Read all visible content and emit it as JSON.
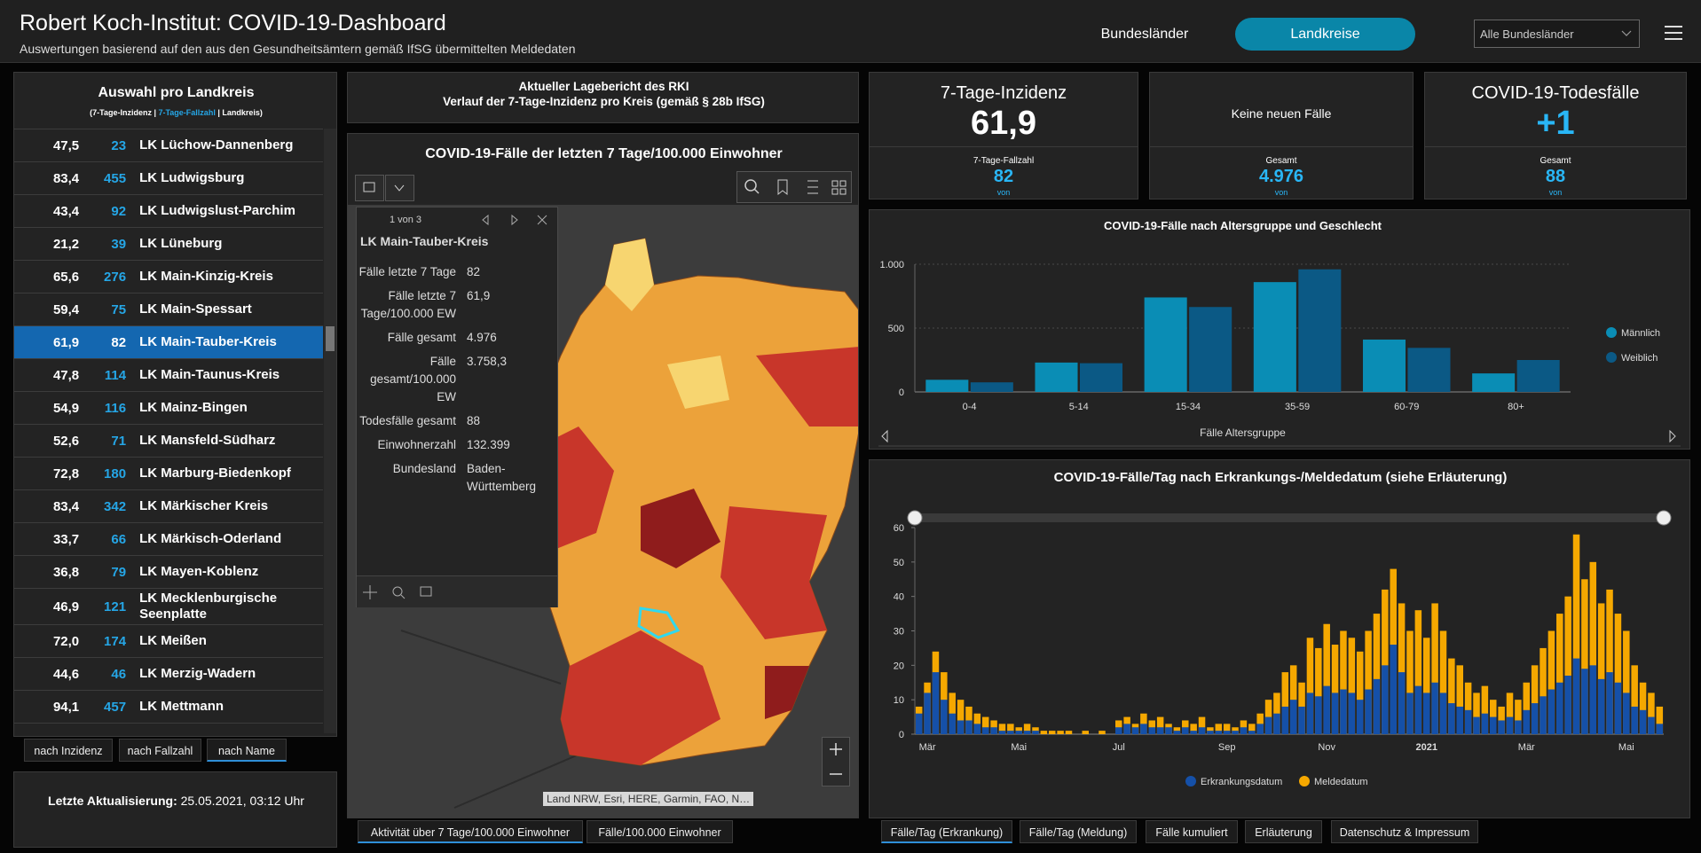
{
  "header": {
    "title": "Robert Koch-Institut: COVID-19-Dashboard",
    "subtitle": "Auswertungen basierend auf den aus den Gesundheitsämtern gemäß IfSG übermittelten Meldedaten",
    "tabs": [
      "Bundesländer",
      "Landkreise"
    ],
    "active_tab": 1,
    "dropdown": "Alle Bundesländer"
  },
  "district_list": {
    "title": "Auswahl pro Landkreis",
    "legend": [
      "(7-Tage-Inzidenz | ",
      "7-Tage-Fallzahl",
      " | Landkreis)"
    ],
    "selected": 6,
    "rows": [
      [
        "47,5",
        "23",
        "LK Lüchow-Dannenberg"
      ],
      [
        "83,4",
        "455",
        "LK Ludwigsburg"
      ],
      [
        "43,4",
        "92",
        "LK Ludwigslust-Parchim"
      ],
      [
        "21,2",
        "39",
        "LK Lüneburg"
      ],
      [
        "65,6",
        "276",
        "LK Main-Kinzig-Kreis"
      ],
      [
        "59,4",
        "75",
        "LK Main-Spessart"
      ],
      [
        "61,9",
        "82",
        "LK Main-Tauber-Kreis"
      ],
      [
        "47,8",
        "114",
        "LK Main-Taunus-Kreis"
      ],
      [
        "54,9",
        "116",
        "LK Mainz-Bingen"
      ],
      [
        "52,6",
        "71",
        "LK Mansfeld-Südharz"
      ],
      [
        "72,8",
        "180",
        "LK Marburg-Biedenkopf"
      ],
      [
        "83,4",
        "342",
        "LK Märkischer Kreis"
      ],
      [
        "33,7",
        "66",
        "LK Märkisch-Oderland"
      ],
      [
        "36,8",
        "79",
        "LK Mayen-Koblenz"
      ],
      [
        "46,9",
        "121",
        "LK Mecklenburgische Seenplatte"
      ],
      [
        "72,0",
        "174",
        "LK Meißen"
      ],
      [
        "44,6",
        "46",
        "LK Merzig-Wadern"
      ],
      [
        "94,1",
        "457",
        "LK Mettmann"
      ]
    ],
    "sort_buttons": [
      "nach Inzidenz",
      "nach Fallzahl",
      "nach Name"
    ],
    "active_sort": 2
  },
  "last_update": {
    "label": "Letzte Aktualisierung:",
    "value": "25.05.2021, 03:12 Uhr"
  },
  "report": {
    "line1": "Aktueller Lagebericht des RKI",
    "line2": "Verlauf der 7-Tage-Inzidenz pro Kreis (gemäß § 28b IfSG)"
  },
  "map": {
    "title": "COVID-19-Fälle der letzten 7 Tage/100.000 Einwohner",
    "attribution": "Land NRW, Esri, HERE, Garmin, FAO, N…",
    "popup": {
      "pager": "1 von 3",
      "title": "LK Main-Tauber-Kreis",
      "fields": [
        [
          "Fälle letzte 7 Tage",
          "82"
        ],
        [
          "Fälle letzte 7 Tage/100.000 EW",
          "61,9"
        ],
        [
          "Fälle gesamt",
          "4.976"
        ],
        [
          "Fälle gesamt/100.000 EW",
          "3.758,3"
        ],
        [
          "Todesfälle gesamt",
          "88"
        ],
        [
          "Einwohnerzahl",
          "132.399"
        ],
        [
          "Bundesland",
          "Baden-Württemberg"
        ]
      ]
    },
    "tabs": [
      "Aktivität über 7 Tage/100.000 Einwohner",
      "Fälle/100.000 Einwohner"
    ],
    "active_tab": 0
  },
  "kpis": [
    {
      "title": "7-Tage-Inzidenz",
      "value": "61,9",
      "sub_label": "7-Tage-Fallzahl",
      "sub_value": "82",
      "note": "von"
    },
    {
      "title": "Keine neuen Fälle",
      "sub_label": "Gesamt",
      "sub_value": "4.976",
      "note": "von"
    },
    {
      "title": "COVID-19-Todesfälle",
      "value": "+1",
      "sub_label": "Gesamt",
      "sub_value": "88",
      "note": "von"
    }
  ],
  "chart_data": [
    {
      "type": "bar",
      "barmode": "group",
      "title": "COVID-19-Fälle nach Altersgruppe und Geschlecht",
      "x_label": "Fälle Altersgruppe",
      "categories": [
        "0-4",
        "5-14",
        "15-34",
        "35-59",
        "60-79",
        "80+"
      ],
      "series": [
        {
          "name": "Männlich",
          "color": "#0a8db5",
          "values": [
            95,
            230,
            740,
            860,
            410,
            145
          ]
        },
        {
          "name": "Weiblich",
          "color": "#0b5985",
          "values": [
            75,
            225,
            665,
            960,
            345,
            250
          ]
        }
      ],
      "ylim": [
        0,
        1000
      ],
      "yticks": [
        0,
        500,
        {
          "value": 1000,
          "label": "1.000"
        }
      ],
      "grid": true
    },
    {
      "type": "bar",
      "barmode": "overlay",
      "title": "COVID-19-Fälle/Tag nach Erkrankungs-/Meldedatum (siehe Erläuterung)",
      "categories": [
        null,
        "Mär",
        null,
        null,
        null,
        null,
        null,
        null,
        null,
        null,
        null,
        null,
        "Mai",
        null,
        null,
        null,
        null,
        null,
        null,
        null,
        null,
        null,
        null,
        null,
        "Jul",
        null,
        null,
        null,
        null,
        null,
        null,
        null,
        null,
        null,
        null,
        null,
        null,
        "Sep",
        null,
        null,
        null,
        null,
        null,
        null,
        null,
        null,
        null,
        null,
        null,
        "Nov",
        null,
        null,
        null,
        null,
        null,
        null,
        null,
        null,
        null,
        null,
        null,
        "2021",
        null,
        null,
        null,
        null,
        null,
        null,
        null,
        null,
        null,
        null,
        null,
        "Mär",
        null,
        null,
        null,
        null,
        null,
        null,
        null,
        null,
        null,
        null,
        null,
        "Mai",
        null,
        null,
        null,
        null
      ],
      "series": [
        {
          "name": "Erkrankungsdatum",
          "color": "#1550a8",
          "values": [
            6,
            12,
            18,
            10,
            6,
            4,
            4,
            3,
            2,
            2,
            1,
            1,
            1,
            1,
            1,
            0,
            0,
            0,
            0,
            0,
            0,
            0,
            0,
            0,
            2,
            3,
            2,
            3,
            2,
            2,
            2,
            1,
            2,
            1,
            2,
            1,
            1,
            1,
            1,
            2,
            1,
            3,
            5,
            6,
            8,
            10,
            8,
            12,
            11,
            14,
            12,
            13,
            12,
            10,
            13,
            16,
            20,
            26,
            18,
            12,
            14,
            12,
            15,
            12,
            9,
            8,
            7,
            5,
            6,
            5,
            4,
            5,
            4,
            7,
            9,
            11,
            13,
            15,
            17,
            22,
            19,
            20,
            16,
            18,
            15,
            12,
            8,
            7,
            5,
            3
          ]
        },
        {
          "name": "Meldedatum",
          "color": "#f5a800",
          "values": [
            8,
            15,
            24,
            18,
            12,
            10,
            8,
            6,
            5,
            4,
            3,
            3,
            2,
            3,
            2,
            1,
            1,
            1,
            1,
            0,
            1,
            0,
            1,
            0,
            4,
            5,
            3,
            6,
            4,
            5,
            3,
            2,
            4,
            3,
            5,
            2,
            3,
            3,
            2,
            4,
            3,
            6,
            10,
            12,
            18,
            20,
            15,
            28,
            25,
            32,
            26,
            30,
            28,
            24,
            30,
            35,
            42,
            48,
            38,
            30,
            36,
            28,
            38,
            30,
            22,
            20,
            15,
            12,
            14,
            10,
            8,
            12,
            10,
            15,
            20,
            25,
            30,
            35,
            40,
            58,
            45,
            50,
            38,
            42,
            35,
            30,
            20,
            15,
            12,
            8
          ]
        }
      ],
      "ylim": [
        0,
        60
      ],
      "yticks": [
        0,
        10,
        20,
        30,
        40,
        50,
        60
      ],
      "grid": false
    }
  ],
  "bottom_tabs": [
    "Fälle/Tag (Erkrankung)",
    "Fälle/Tag (Meldung)",
    "Fälle kumuliert",
    "Erläuterung",
    "Datenschutz & Impressum"
  ],
  "active_bottom_tab": 0
}
